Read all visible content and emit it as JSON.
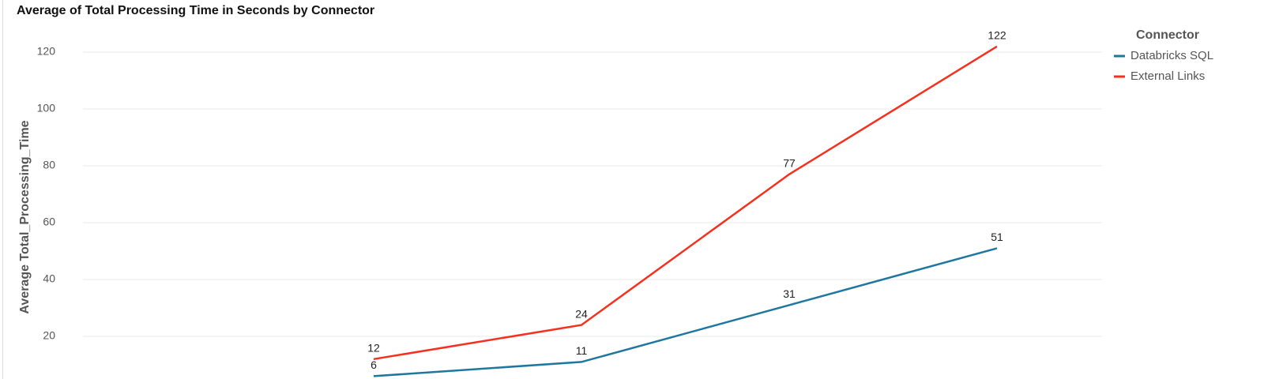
{
  "chart_data": {
    "type": "line",
    "title": "Average of Total Processing Time in Seconds by Connector",
    "y_label": "Average Total_Processing_Time",
    "legend_title": "Connector",
    "categories": [
      null,
      null,
      null,
      null
    ],
    "series": [
      {
        "name": "Databricks SQL",
        "color": "#1f77a0",
        "values": [
          6,
          11,
          31,
          51
        ]
      },
      {
        "name": "External Links",
        "color": "#f5301e",
        "values": [
          12,
          24,
          77,
          122
        ]
      }
    ],
    "ylim": [
      0,
      130
    ],
    "yticks": [
      20,
      40,
      60,
      80,
      100,
      120
    ],
    "grid": true,
    "legend": "right"
  }
}
